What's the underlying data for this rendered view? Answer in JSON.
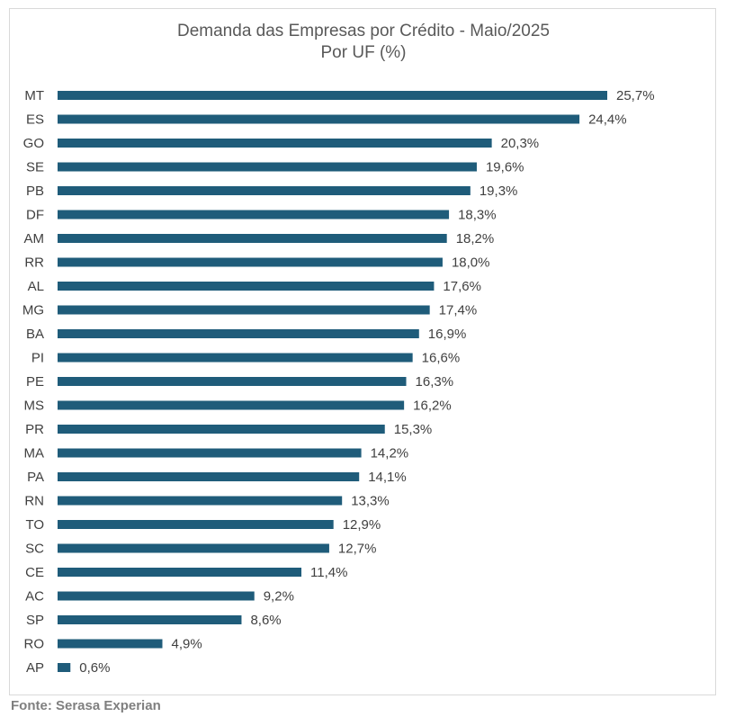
{
  "chart_data": {
    "type": "bar",
    "orientation": "horizontal",
    "title": "Demanda das Empresas por Crédito - Maio/2025",
    "subtitle": "Por UF (%)",
    "categories": [
      "MT",
      "ES",
      "GO",
      "SE",
      "PB",
      "DF",
      "AM",
      "RR",
      "AL",
      "MG",
      "BA",
      "PI",
      "PE",
      "MS",
      "PR",
      "MA",
      "PA",
      "RN",
      "TO",
      "SC",
      "CE",
      "AC",
      "SP",
      "RO",
      "AP"
    ],
    "values": [
      25.7,
      24.4,
      20.3,
      19.6,
      19.3,
      18.3,
      18.2,
      18.0,
      17.6,
      17.4,
      16.9,
      16.6,
      16.3,
      16.2,
      15.3,
      14.2,
      14.1,
      13.3,
      12.9,
      12.7,
      11.4,
      9.2,
      8.6,
      4.9,
      0.6
    ],
    "data_labels": [
      "25,7%",
      "24,4%",
      "20,3%",
      "19,6%",
      "19,3%",
      "18,3%",
      "18,2%",
      "18,0%",
      "17,6%",
      "17,4%",
      "16,9%",
      "16,6%",
      "16,3%",
      "16,2%",
      "15,3%",
      "14,2%",
      "14,1%",
      "13,3%",
      "12,9%",
      "12,7%",
      "11,4%",
      "9,2%",
      "8,6%",
      "4,9%",
      "0,6%"
    ],
    "xlim": [
      0,
      25.7
    ],
    "grid": false,
    "legend": "none",
    "bar_color": "#1f5c7a"
  },
  "footer": {
    "source": "Fonte: Serasa Experian"
  }
}
